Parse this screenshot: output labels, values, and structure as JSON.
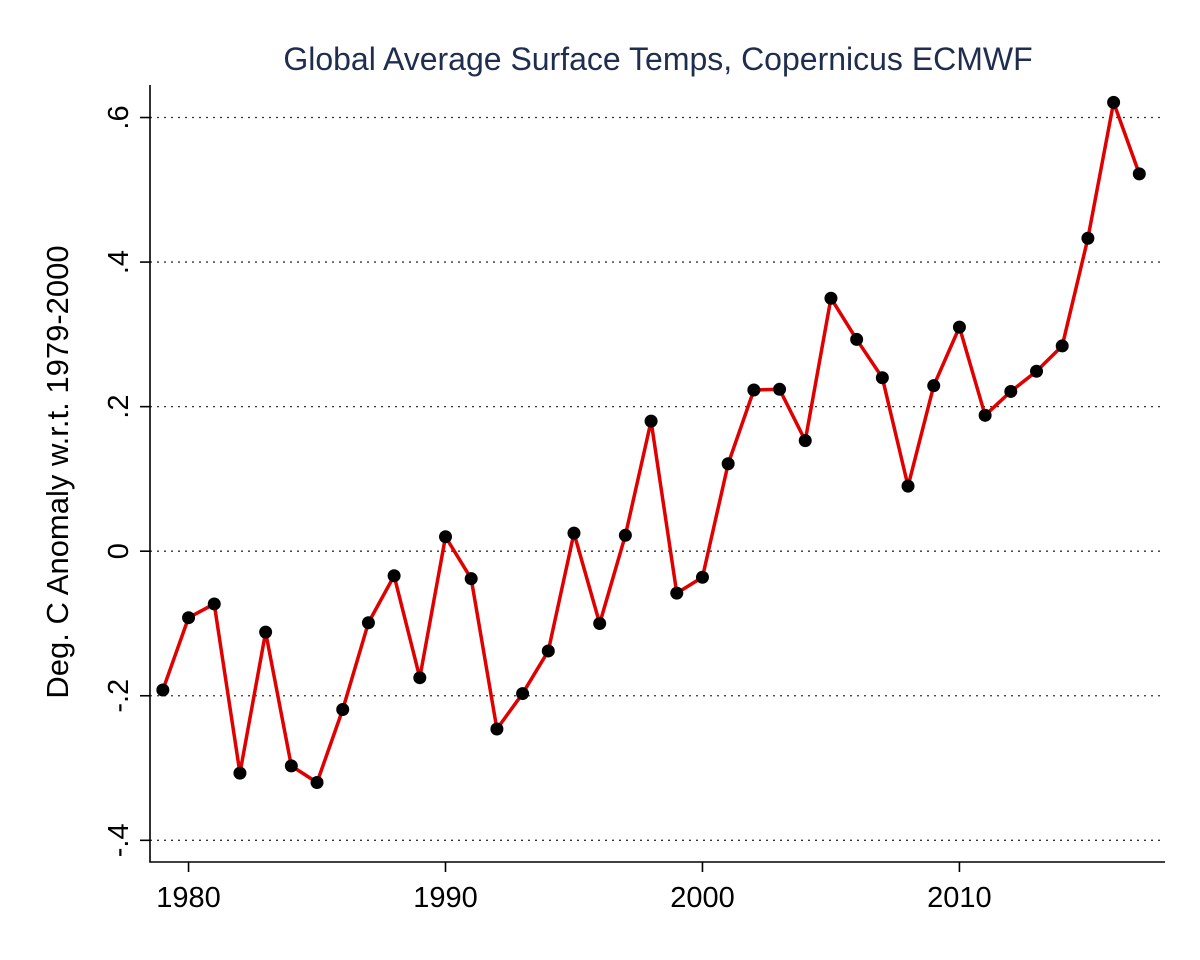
{
  "chart_data": {
    "type": "line",
    "title": "Global Average Surface Temps, Copernicus ECMWF",
    "xlabel": "",
    "ylabel": "Deg. C Anomaly w.r.t. 1979-2000",
    "xlim": [
      1978.5,
      2018
    ],
    "ylim": [
      -0.43,
      0.645
    ],
    "x_ticks": [
      1980,
      1990,
      2000,
      2010
    ],
    "x_tick_labels": [
      "1980",
      "1990",
      "2000",
      "2010"
    ],
    "y_ticks": [
      -0.4,
      -0.2,
      0,
      0.2,
      0.4,
      0.6
    ],
    "y_tick_labels": [
      "-.4",
      "-.2",
      "0",
      ".2",
      ".4",
      ".6"
    ],
    "grid": "horizontal-dotted",
    "line_color": "#e00000",
    "marker_color": "#000000",
    "series": [
      {
        "x": [
          1979,
          1980,
          1981,
          1982,
          1983,
          1984,
          1985,
          1986,
          1987,
          1988,
          1989,
          1990,
          1991,
          1992,
          1993,
          1994,
          1995,
          1996,
          1997,
          1998,
          1999,
          2000,
          2001,
          2002,
          2003,
          2004,
          2005,
          2006,
          2007,
          2008,
          2009,
          2010,
          2011,
          2012,
          2013,
          2014,
          2015,
          2016,
          2017
        ],
        "values": [
          -0.192,
          -0.092,
          -0.073,
          -0.307,
          -0.112,
          -0.297,
          -0.32,
          -0.219,
          -0.099,
          -0.034,
          -0.175,
          0.02,
          -0.038,
          -0.246,
          -0.197,
          -0.138,
          0.025,
          -0.1,
          0.022,
          0.18,
          -0.058,
          -0.036,
          0.121,
          0.223,
          0.224,
          0.153,
          0.35,
          0.293,
          0.24,
          0.09,
          0.229,
          0.31,
          0.188,
          0.221,
          0.249,
          0.284,
          0.433,
          0.621,
          0.522
        ]
      }
    ]
  }
}
